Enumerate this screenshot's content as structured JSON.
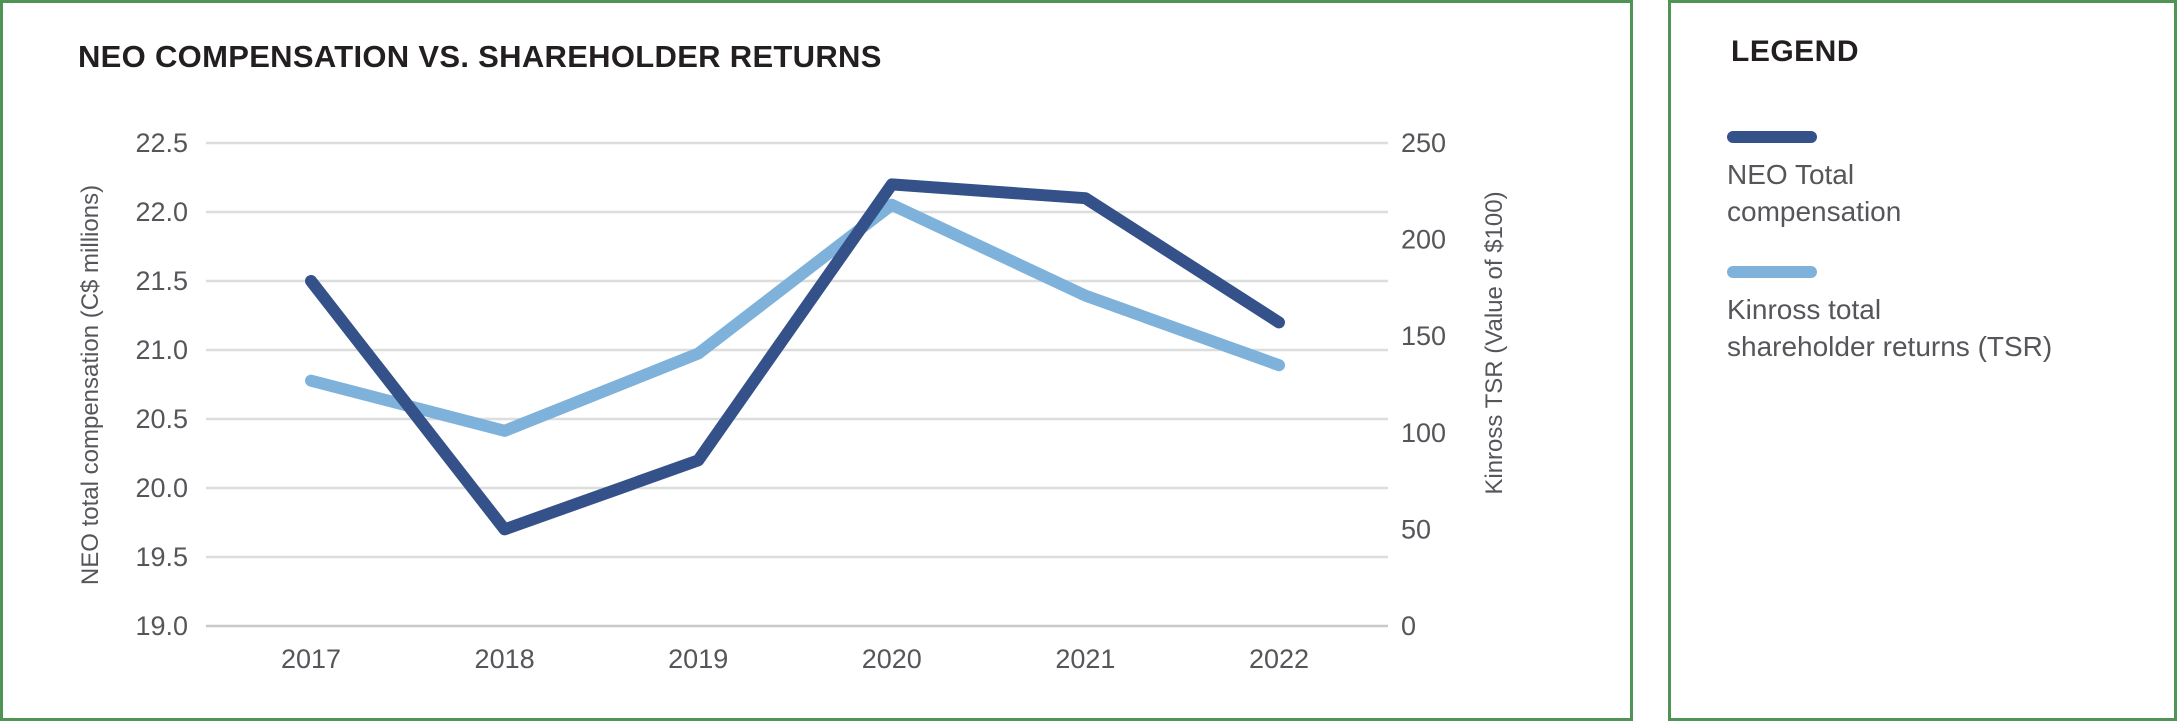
{
  "main_panel": {
    "title": "NEO COMPENSATION VS. SHAREHOLDER RETURNS"
  },
  "legend_panel": {
    "title": "LEGEND",
    "items": [
      {
        "label": "NEO Total\ncompensation",
        "color": "#35518A"
      },
      {
        "label": "Kinross total\nshareholder returns (TSR)",
        "color": "#7FB2DA"
      }
    ]
  },
  "colors": {
    "border_green": "#4F9355",
    "title_text": "#231F20",
    "axis_text": "#55565A",
    "gridline": "#DCDDDD",
    "axis_line": "#C8C9CA",
    "neo_line": "#35518A",
    "tsr_line": "#7FB2DA"
  },
  "chart_data": {
    "type": "line",
    "title": "NEO COMPENSATION VS. SHAREHOLDER RETURNS",
    "categories": [
      "2017",
      "2018",
      "2019",
      "2020",
      "2021",
      "2022"
    ],
    "series": [
      {
        "name": "NEO Total compensation",
        "axis": "left",
        "color": "#35518A",
        "values": [
          21.5,
          19.7,
          20.2,
          22.2,
          22.1,
          21.2
        ]
      },
      {
        "name": "Kinross total shareholder returns (TSR)",
        "axis": "right",
        "color": "#7FB2DA",
        "values": [
          127,
          101,
          141,
          218,
          171,
          135
        ]
      }
    ],
    "left_axis": {
      "label": "NEO total compensation (C$ millions)",
      "min": 19.0,
      "max": 22.5,
      "ticks": [
        "22.5",
        "22.0",
        "21.5",
        "21.0",
        "20.5",
        "20.0",
        "19.5",
        "19.0"
      ]
    },
    "right_axis": {
      "label": "Kinross TSR (Value of $100)",
      "min": 0,
      "max": 250,
      "ticks": [
        "250",
        "200",
        "150",
        "100",
        "50",
        "0"
      ]
    },
    "grid": "horizontal gridlines on",
    "legend_position": "separate right panel"
  }
}
